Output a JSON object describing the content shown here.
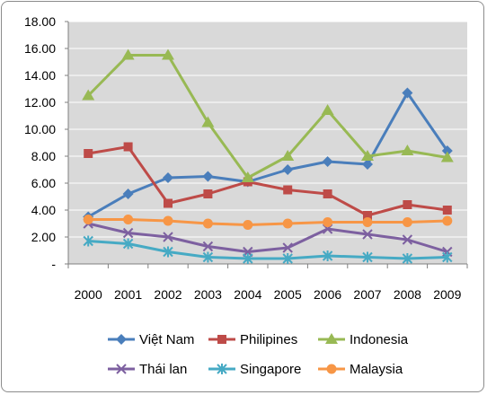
{
  "chart_data": {
    "type": "line",
    "title": "",
    "xlabel": "",
    "ylabel": "",
    "categories": [
      "2000",
      "2001",
      "2002",
      "2003",
      "2004",
      "2005",
      "2006",
      "2007",
      "2008",
      "2009"
    ],
    "ylim": [
      0,
      18
    ],
    "yticks": [
      "-",
      "2.00",
      "4.00",
      "6.00",
      "8.00",
      "10.00",
      "12.00",
      "14.00",
      "16.00",
      "18.00"
    ],
    "grid": true,
    "legend_position": "bottom",
    "series": [
      {
        "name": "Việt Nam",
        "color": "#4a7ebb",
        "marker": "diamond",
        "values": [
          3.5,
          5.2,
          6.4,
          6.5,
          6.1,
          7.0,
          7.6,
          7.4,
          12.7,
          8.4
        ]
      },
      {
        "name": "Philipines",
        "color": "#be4b48",
        "marker": "square",
        "values": [
          8.2,
          8.7,
          4.5,
          5.2,
          6.1,
          5.5,
          5.2,
          3.6,
          4.4,
          4.0
        ]
      },
      {
        "name": "Indonesia",
        "color": "#98b954",
        "marker": "triangle",
        "values": [
          12.5,
          15.5,
          15.5,
          10.5,
          6.4,
          8.0,
          11.4,
          8.0,
          8.4,
          7.9
        ]
      },
      {
        "name": "Thái lan",
        "color": "#7d60a0",
        "marker": "x",
        "values": [
          3.0,
          2.3,
          2.0,
          1.3,
          0.9,
          1.2,
          2.6,
          2.2,
          1.8,
          0.9
        ]
      },
      {
        "name": "Singapore",
        "color": "#46aac4",
        "marker": "star",
        "values": [
          1.7,
          1.5,
          0.9,
          0.5,
          0.4,
          0.4,
          0.6,
          0.5,
          0.4,
          0.5
        ]
      },
      {
        "name": "Malaysia",
        "color": "#f79646",
        "marker": "circle",
        "values": [
          3.3,
          3.3,
          3.2,
          3.0,
          2.9,
          3.0,
          3.1,
          3.1,
          3.1,
          3.2
        ]
      }
    ]
  }
}
